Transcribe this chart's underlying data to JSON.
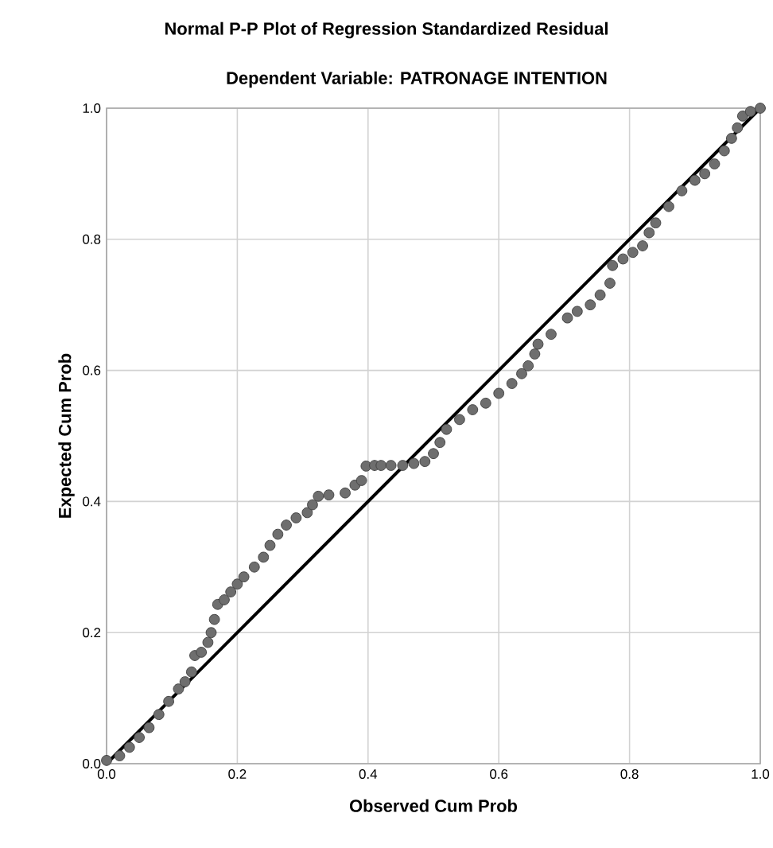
{
  "chart_data": {
    "type": "scatter",
    "title": "Normal P-P Plot of Regression Standardized Residual",
    "subtitle": "Dependent Variable: PATRONAGE INTENTION",
    "xlabel": "Observed Cum Prob",
    "ylabel": "Expected Cum Prob",
    "xlim": [
      0,
      1
    ],
    "ylim": [
      0,
      1
    ],
    "xticks": [
      {
        "value": 0,
        "label": "0.0"
      },
      {
        "value": 0.2,
        "label": "0.2"
      },
      {
        "value": 0.4,
        "label": "0.4"
      },
      {
        "value": 0.6,
        "label": "0.6"
      },
      {
        "value": 0.8,
        "label": "0.8"
      },
      {
        "value": 1,
        "label": "1.0"
      }
    ],
    "yticks": [
      {
        "value": 0,
        "label": "0.0"
      },
      {
        "value": 0.2,
        "label": "0.2"
      },
      {
        "value": 0.4,
        "label": "0.4"
      },
      {
        "value": 0.6,
        "label": "0.6"
      },
      {
        "value": 0.8,
        "label": "0.8"
      },
      {
        "value": 1,
        "label": "1.0"
      }
    ],
    "grid": true,
    "marker": "circle",
    "series": [
      {
        "color": "#6e6e6e",
        "x": [
          0,
          0.02,
          0.035,
          0.05,
          0.065,
          0.08,
          0.095,
          0.11,
          0.12,
          0.13,
          0.135,
          0.145,
          0.155,
          0.16,
          0.165,
          0.17,
          0.18,
          0.19,
          0.2,
          0.21,
          0.226,
          0.24,
          0.25,
          0.262,
          0.275,
          0.29,
          0.307,
          0.315,
          0.324,
          0.34,
          0.365,
          0.38,
          0.39,
          0.397,
          0.41,
          0.42,
          0.435,
          0.453,
          0.47,
          0.487,
          0.5,
          0.51,
          0.52,
          0.54,
          0.56,
          0.58,
          0.6,
          0.62,
          0.635,
          0.645,
          0.655,
          0.66,
          0.68,
          0.705,
          0.72,
          0.74,
          0.755,
          0.77,
          0.774,
          0.79,
          0.805,
          0.82,
          0.83,
          0.84,
          0.86,
          0.88,
          0.9,
          0.915,
          0.93,
          0.945,
          0.956,
          0.965,
          0.973,
          0.985,
          1
        ],
        "values": [
          0.005,
          0.012,
          0.025,
          0.04,
          0.055,
          0.075,
          0.095,
          0.114,
          0.125,
          0.14,
          0.165,
          0.17,
          0.185,
          0.2,
          0.22,
          0.243,
          0.25,
          0.262,
          0.274,
          0.285,
          0.3,
          0.315,
          0.333,
          0.35,
          0.364,
          0.375,
          0.383,
          0.395,
          0.408,
          0.41,
          0.413,
          0.425,
          0.432,
          0.454,
          0.455,
          0.455,
          0.455,
          0.455,
          0.458,
          0.461,
          0.473,
          0.49,
          0.51,
          0.525,
          0.54,
          0.55,
          0.565,
          0.58,
          0.595,
          0.607,
          0.625,
          0.64,
          0.655,
          0.68,
          0.69,
          0.7,
          0.715,
          0.733,
          0.76,
          0.77,
          0.78,
          0.79,
          0.81,
          0.825,
          0.85,
          0.874,
          0.89,
          0.9,
          0.915,
          0.935,
          0.954,
          0.97,
          0.988,
          0.995,
          1
        ]
      },
      {
        "type": "line",
        "color": "#000000",
        "marker": "none",
        "x": [
          0,
          1
        ],
        "values": [
          0,
          1
        ]
      }
    ]
  }
}
